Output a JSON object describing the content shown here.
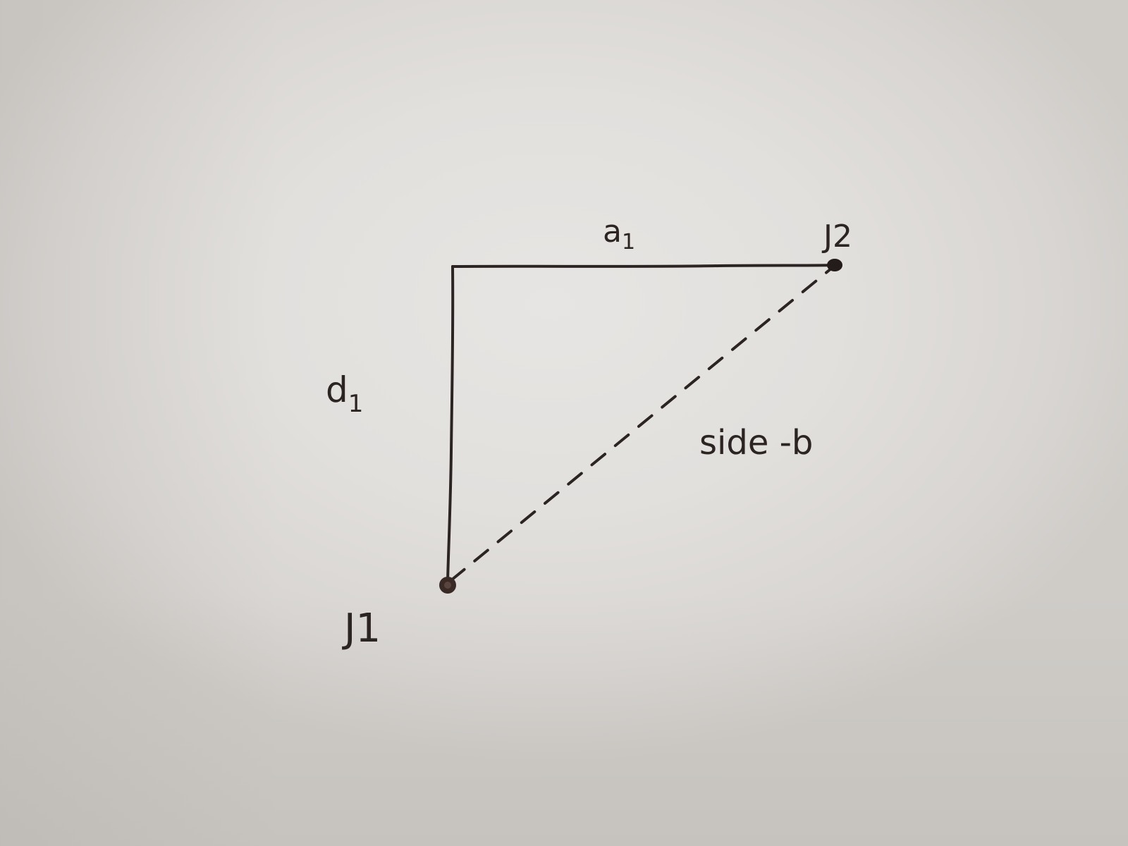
{
  "labels": {
    "top_side": "a",
    "top_side_sub": "1",
    "left_side": "d",
    "left_side_sub": "1",
    "hypotenuse": "side -b",
    "joint_top": "J2",
    "joint_bottom": "J1"
  },
  "colors": {
    "ink": "#2b2422",
    "paper": "#e2e0dd"
  }
}
